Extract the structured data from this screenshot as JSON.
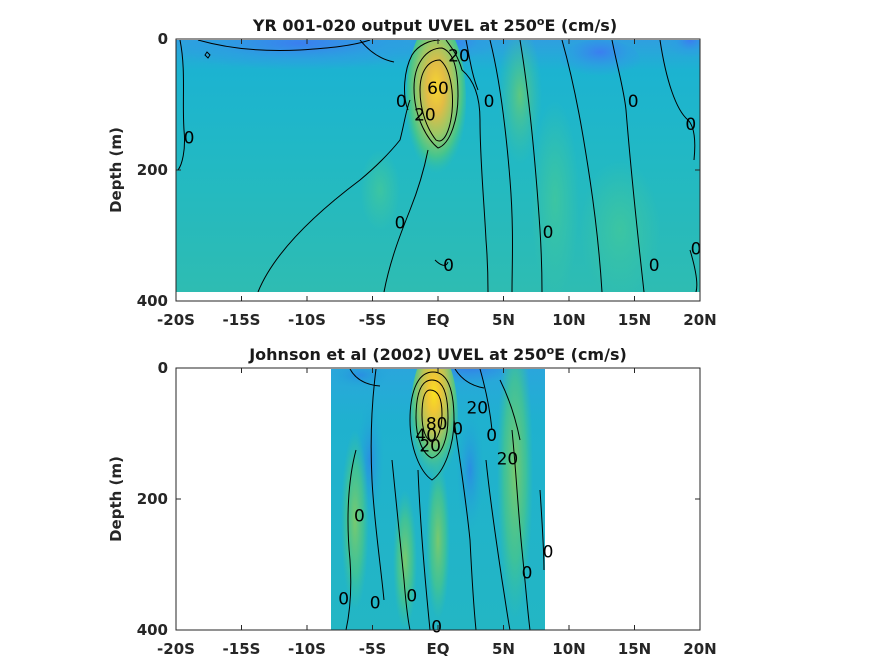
{
  "chart_data": [
    {
      "type": "heatmap",
      "title": "YR 001-020 output UVEL at 250",
      "title_sup": "o",
      "title_tail": "E (cm/s)",
      "ylabel": "Depth (m)",
      "xlim": [
        -20,
        20
      ],
      "ylim": [
        0,
        400
      ],
      "y_reversed": true,
      "x_ticks": [
        -20,
        -15,
        -10,
        -5,
        0,
        5,
        10,
        15,
        20
      ],
      "x_tick_labels": [
        "-20S",
        "-15S",
        "-10S",
        "-5S",
        "EQ",
        "5N",
        "10N",
        "15N",
        "20N"
      ],
      "y_ticks": [
        0,
        200,
        400
      ],
      "y_tick_labels": [
        "0",
        "200",
        "400"
      ],
      "data_extent": {
        "x": [
          -20,
          20
        ],
        "depth": [
          0,
          385
        ]
      },
      "colormap": [
        "#3e26a8",
        "#2e69f5",
        "#1cadd6",
        "#31c39d",
        "#7fc971",
        "#d6ba40",
        "#fbd82a",
        "#f9fb15"
      ],
      "features": [
        {
          "name": "equatorial-undercurrent",
          "x": -0.2,
          "depth": 75,
          "peak": 60
        },
        {
          "name": "surface-westward-flow",
          "x": -5,
          "depth": 0,
          "value": -20
        }
      ],
      "contour_labels": [
        {
          "text": "0",
          "x": -19.0,
          "depth": 150
        },
        {
          "text": "20",
          "x": 1.6,
          "depth": 25
        },
        {
          "text": "60",
          "x": 0.0,
          "depth": 75
        },
        {
          "text": "0",
          "x": -2.8,
          "depth": 95
        },
        {
          "text": "20",
          "x": -1.0,
          "depth": 115
        },
        {
          "text": "0",
          "x": 3.9,
          "depth": 95
        },
        {
          "text": "0",
          "x": 14.9,
          "depth": 95
        },
        {
          "text": "0",
          "x": 19.3,
          "depth": 130
        },
        {
          "text": "0",
          "x": -2.9,
          "depth": 280
        },
        {
          "text": "0",
          "x": 8.4,
          "depth": 295
        },
        {
          "text": "0",
          "x": 19.7,
          "depth": 320
        },
        {
          "text": "0",
          "x": 0.8,
          "depth": 345
        },
        {
          "text": "0",
          "x": 16.5,
          "depth": 345
        }
      ]
    },
    {
      "type": "heatmap",
      "title": "Johnson et al (2002) UVEL at 250",
      "title_sup": "o",
      "title_tail": "E (cm/s)",
      "ylabel": "Depth (m)",
      "xlim": [
        -20,
        20
      ],
      "ylim": [
        0,
        400
      ],
      "y_reversed": true,
      "x_ticks": [
        -20,
        -15,
        -10,
        -5,
        0,
        5,
        10,
        15,
        20
      ],
      "x_tick_labels": [
        "-20S",
        "-15S",
        "-10S",
        "-5S",
        "EQ",
        "5N",
        "10N",
        "15N",
        "20N"
      ],
      "y_ticks": [
        0,
        200,
        400
      ],
      "y_tick_labels": [
        "0",
        "200",
        "400"
      ],
      "data_extent": {
        "x": [
          -8,
          8.2
        ],
        "depth": [
          0,
          400
        ]
      },
      "colormap": [
        "#3e26a8",
        "#2e69f5",
        "#1cadd6",
        "#31c39d",
        "#7fc971",
        "#d6ba40",
        "#fbd82a",
        "#f9fb15"
      ],
      "features": [
        {
          "name": "equatorial-undercurrent",
          "x": -0.2,
          "depth": 75,
          "peak": 80
        },
        {
          "name": "surface-westward-flow",
          "x": 2,
          "depth": 0,
          "value": -20
        }
      ],
      "contour_labels": [
        {
          "text": "20",
          "x": 3.0,
          "depth": 60
        },
        {
          "text": "80",
          "x": -0.1,
          "depth": 85
        },
        {
          "text": "40",
          "x": -0.9,
          "depth": 102
        },
        {
          "text": "0",
          "x": 1.5,
          "depth": 92
        },
        {
          "text": "0",
          "x": 4.1,
          "depth": 102
        },
        {
          "text": "20",
          "x": -0.6,
          "depth": 118
        },
        {
          "text": "20",
          "x": 5.3,
          "depth": 138
        },
        {
          "text": "0",
          "x": -6.0,
          "depth": 225
        },
        {
          "text": "0",
          "x": 8.4,
          "depth": 280
        },
        {
          "text": "0",
          "x": 6.8,
          "depth": 312
        },
        {
          "text": "0",
          "x": -7.2,
          "depth": 352
        },
        {
          "text": "0",
          "x": -4.8,
          "depth": 358
        },
        {
          "text": "0",
          "x": -2.0,
          "depth": 347
        },
        {
          "text": "0",
          "x": -0.1,
          "depth": 395
        }
      ]
    }
  ]
}
